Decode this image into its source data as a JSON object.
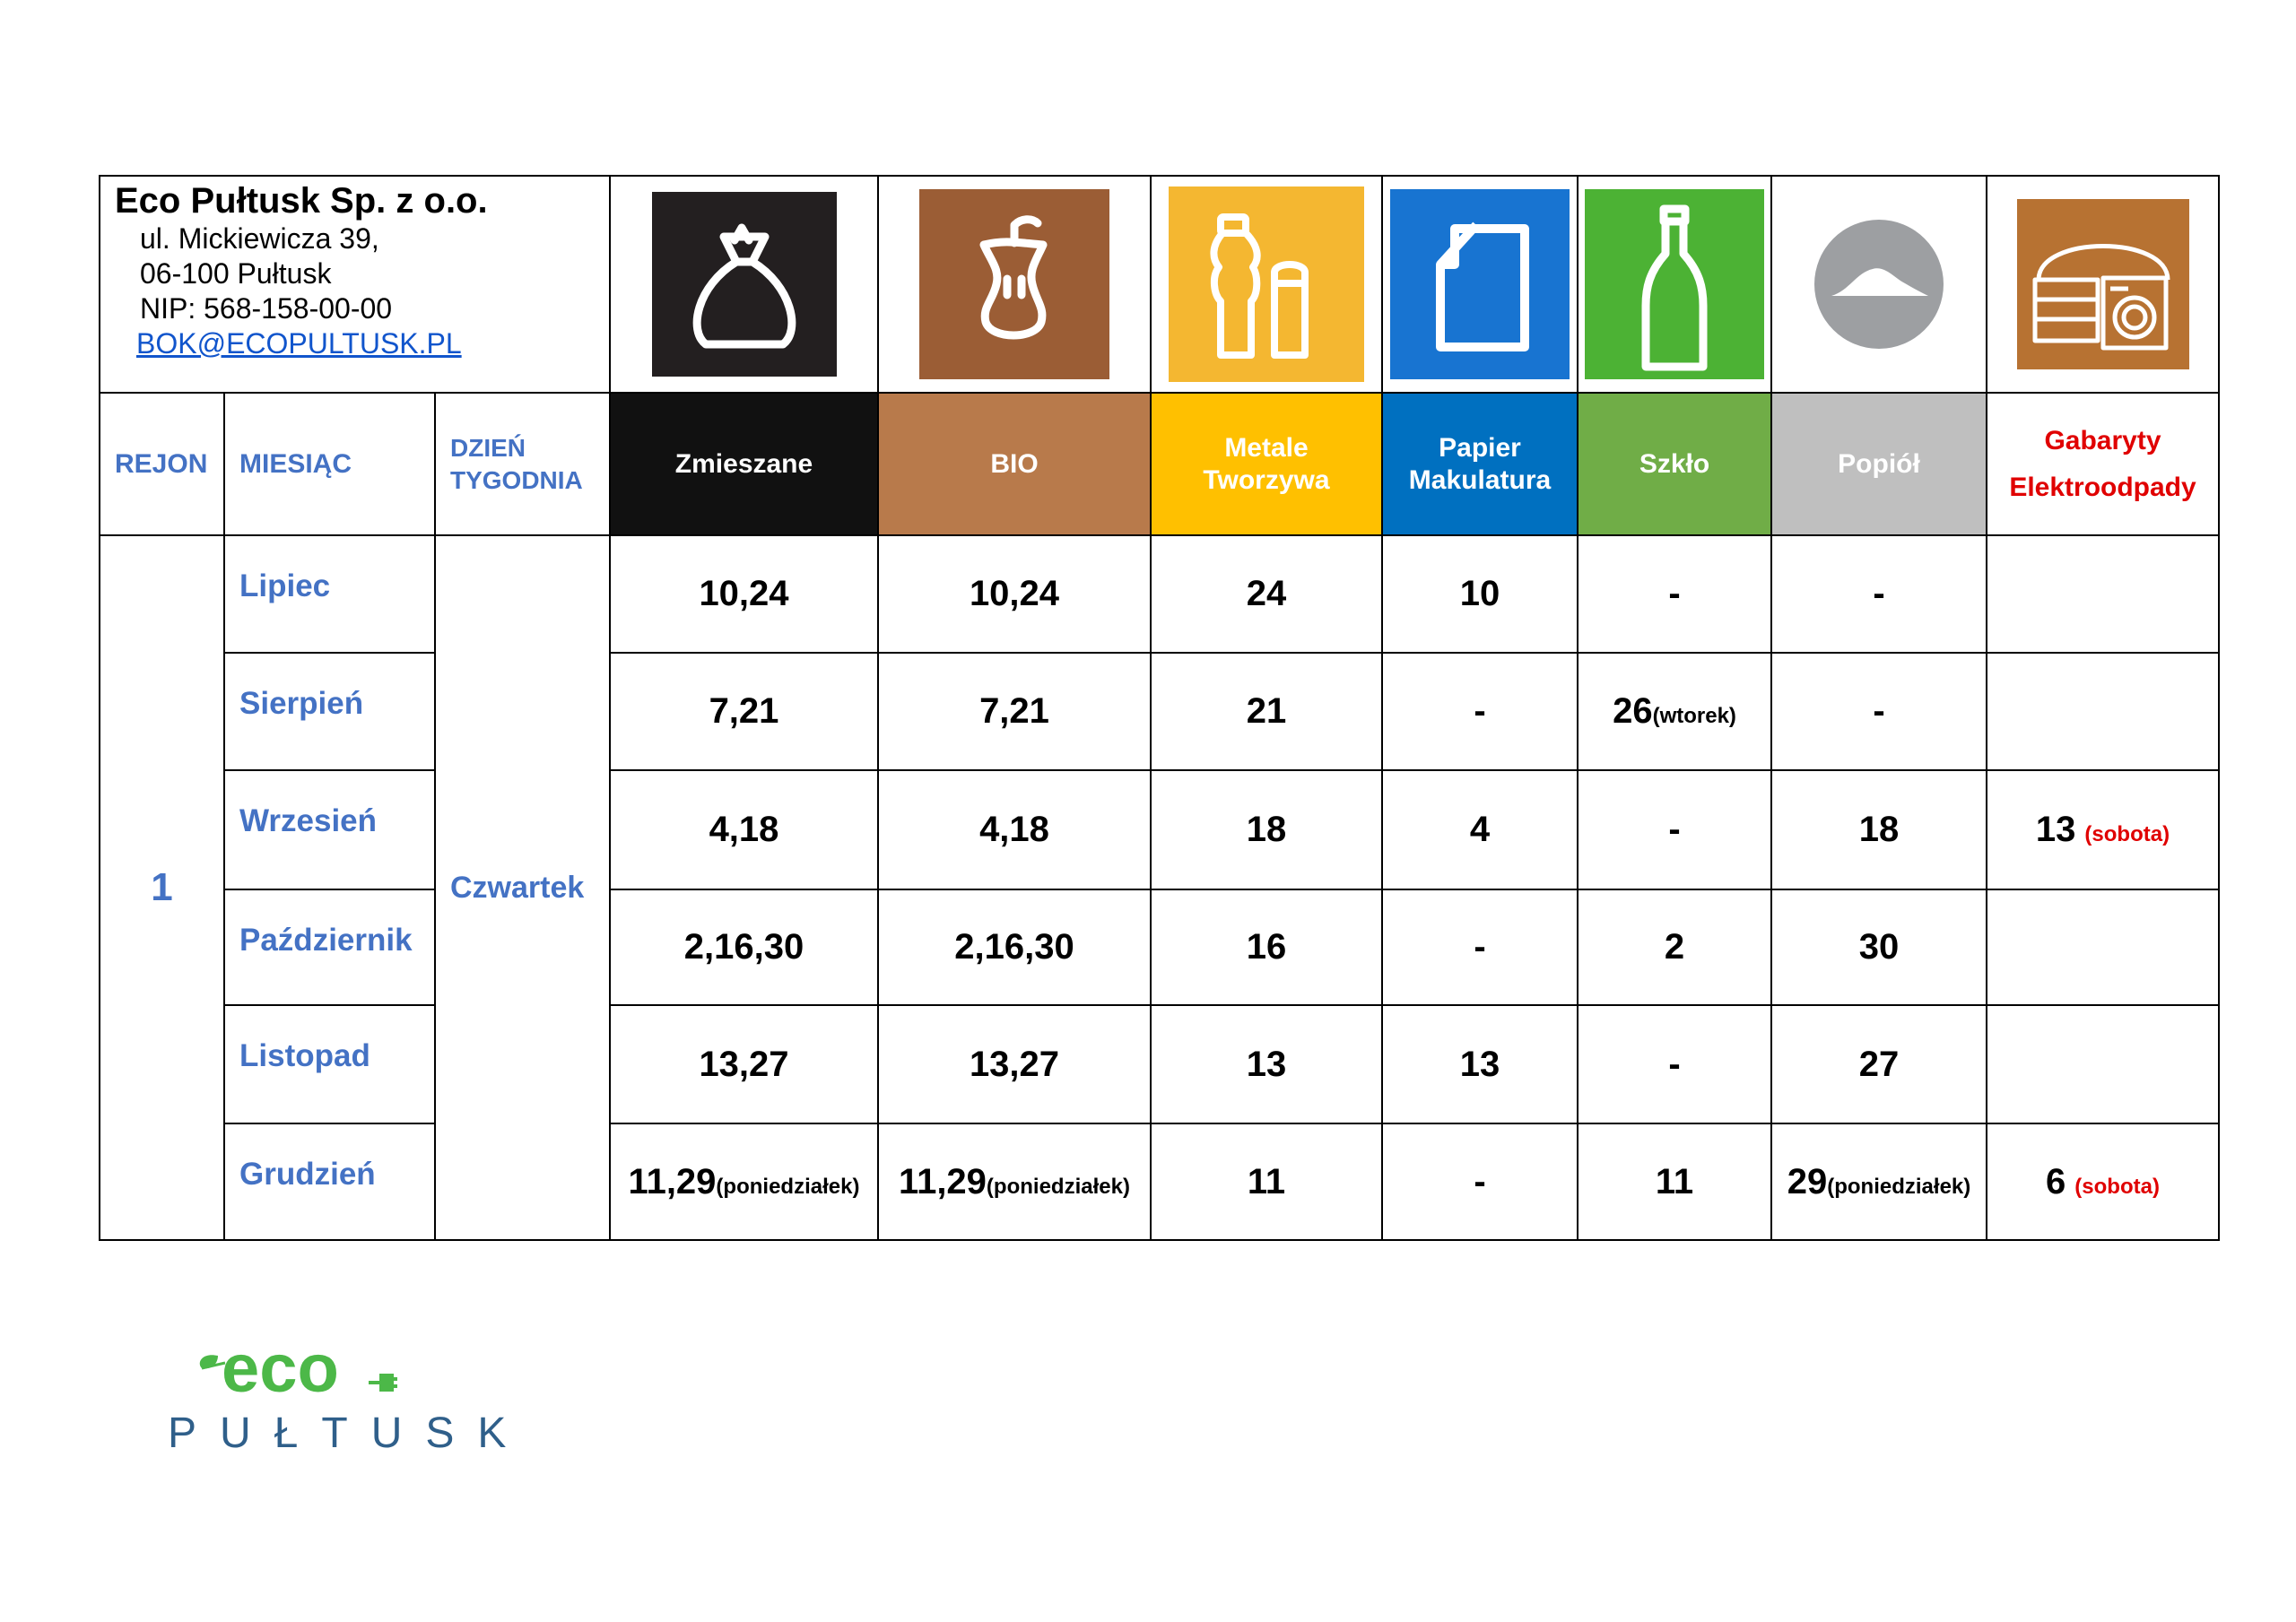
{
  "company": {
    "name": "Eco Pułtusk Sp. z o.o.",
    "address1": "ul. Mickiewicza 39,",
    "address2": "06-100 Pułtusk",
    "nip": "NIP: 568-158-00-00",
    "email": "BOK@ECOPULTUSK.PL"
  },
  "headers": {
    "region": "REJON",
    "month": "MIESIĄC",
    "day_line1": "DZIEŃ",
    "day_line2": "TYGODNIA"
  },
  "categories": [
    {
      "line1": "Zmieszane",
      "line2": "",
      "bg": "#111111",
      "fg": "#ffffff",
      "icon": "trash-bag-icon",
      "icon_bg": "#231f20"
    },
    {
      "line1": "BIO",
      "line2": "",
      "bg": "#b87a4b",
      "fg": "#ffffff",
      "icon": "apple-core-icon",
      "icon_bg": "#9b5d35"
    },
    {
      "line1": "Metale",
      "line2": "Tworzywa",
      "bg": "#ffc000",
      "fg": "#ffffff",
      "icon": "bottle-can-icon",
      "icon_bg": "#f4b731"
    },
    {
      "line1": "Papier",
      "line2": "Makulatura",
      "bg": "#0070c0",
      "fg": "#ffffff",
      "icon": "paper-sheet-icon",
      "icon_bg": "#1874d1"
    },
    {
      "line1": "Szkło",
      "line2": "",
      "bg": "#70ad47",
      "fg": "#ffffff",
      "icon": "glass-bottle-icon",
      "icon_bg": "#4cb234"
    },
    {
      "line1": "Popiół",
      "line2": "",
      "bg": "#bfbfbf",
      "fg": "#ffffff",
      "icon": "ash-pile-icon",
      "icon_bg": "#9d9fa2"
    },
    {
      "line1": "Gabaryty",
      "line2": "Elektroodpady",
      "bg": "#ffffff",
      "fg": "#e00000",
      "icon": "furniture-washer-icon",
      "icon_bg": "#b77232"
    }
  ],
  "region": "1",
  "day": "Czwartek",
  "rows": [
    {
      "month": "Lipiec",
      "cells": [
        {
          "v": "10,24",
          "n": ""
        },
        {
          "v": "10,24",
          "n": ""
        },
        {
          "v": "24",
          "n": ""
        },
        {
          "v": "10",
          "n": ""
        },
        {
          "v": "-",
          "n": ""
        },
        {
          "v": "-",
          "n": ""
        },
        {
          "v": "",
          "n": ""
        }
      ]
    },
    {
      "month": "Sierpień",
      "cells": [
        {
          "v": "7,21",
          "n": ""
        },
        {
          "v": "7,21",
          "n": ""
        },
        {
          "v": "21",
          "n": ""
        },
        {
          "v": "-",
          "n": ""
        },
        {
          "v": "26",
          "n": "(wtorek)"
        },
        {
          "v": "-",
          "n": ""
        },
        {
          "v": "",
          "n": ""
        }
      ]
    },
    {
      "month": "Wrzesień",
      "cells": [
        {
          "v": "4,18",
          "n": ""
        },
        {
          "v": "4,18",
          "n": ""
        },
        {
          "v": "18",
          "n": ""
        },
        {
          "v": "4",
          "n": ""
        },
        {
          "v": "-",
          "n": ""
        },
        {
          "v": "18",
          "n": ""
        },
        {
          "v": "13",
          "r": "(sobota)"
        }
      ]
    },
    {
      "month": "Październik",
      "cells": [
        {
          "v": "2,16,30",
          "n": ""
        },
        {
          "v": "2,16,30",
          "n": ""
        },
        {
          "v": "16",
          "n": ""
        },
        {
          "v": "-",
          "n": ""
        },
        {
          "v": "2",
          "n": ""
        },
        {
          "v": "30",
          "n": ""
        },
        {
          "v": "",
          "n": ""
        }
      ]
    },
    {
      "month": "Listopad",
      "cells": [
        {
          "v": "13,27",
          "n": ""
        },
        {
          "v": "13,27",
          "n": ""
        },
        {
          "v": "13",
          "n": ""
        },
        {
          "v": "13",
          "n": ""
        },
        {
          "v": "-",
          "n": ""
        },
        {
          "v": "27",
          "n": ""
        },
        {
          "v": "",
          "n": ""
        }
      ]
    },
    {
      "month": "Grudzień",
      "cells": [
        {
          "v": "11,29",
          "n": "(poniedziałek)"
        },
        {
          "v": "11,29",
          "n": "(poniedziałek)"
        },
        {
          "v": "11",
          "n": ""
        },
        {
          "v": "-",
          "n": ""
        },
        {
          "v": "11",
          "n": ""
        },
        {
          "v": "29",
          "n": "(poniedziałek)"
        },
        {
          "v": "6",
          "r": "(sobota)"
        }
      ]
    }
  ],
  "logo": {
    "word": "eco",
    "city": "PUŁTUSK",
    "green": "#4cb848",
    "blue": "#2f5f8a"
  }
}
